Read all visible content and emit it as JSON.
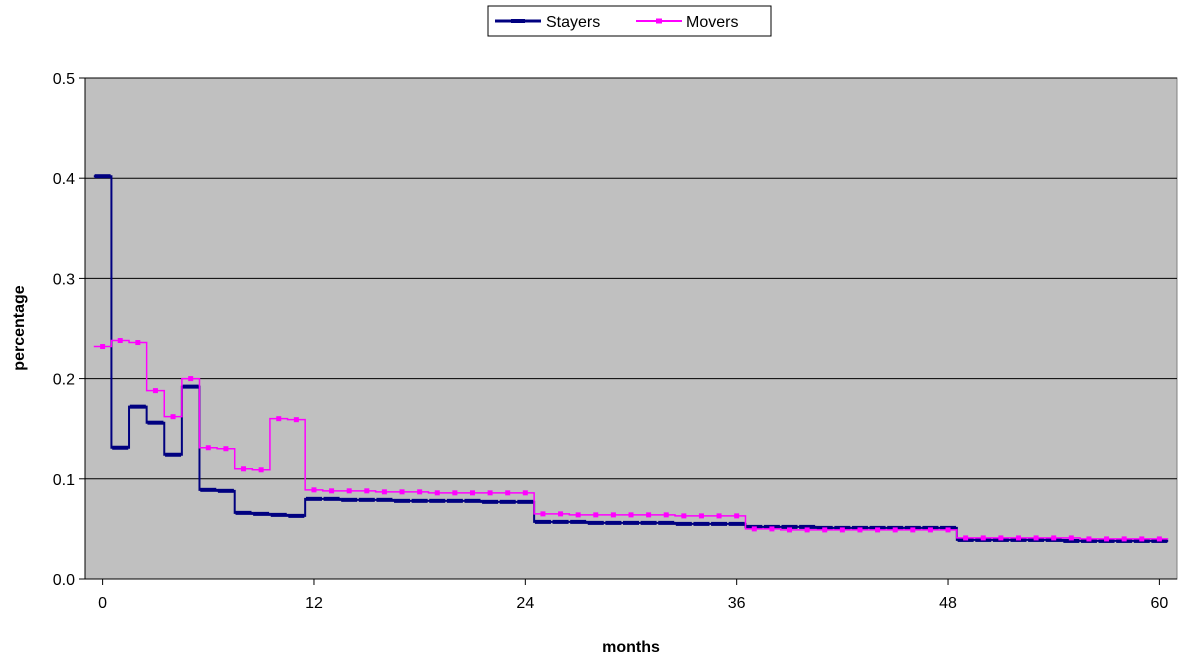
{
  "chart_data": {
    "type": "line",
    "step": true,
    "title": "",
    "xlabel": "months",
    "ylabel": "percentage",
    "xlim": [
      -1,
      61
    ],
    "ylim": [
      0,
      0.5
    ],
    "x_ticks": [
      0,
      12,
      24,
      36,
      48,
      60
    ],
    "y_ticks": [
      0.0,
      0.1,
      0.2,
      0.3,
      0.4,
      0.5
    ],
    "x_tick_labels": [
      "0",
      "12",
      "24",
      "36",
      "48",
      "60"
    ],
    "y_tick_labels": [
      "0.0",
      "0.1",
      "0.2",
      "0.3",
      "0.4",
      "0.5"
    ],
    "grid": "horizontal",
    "legend_position": "top-center",
    "plot_background": "#c0c0c0",
    "series": [
      {
        "name": "Stayers",
        "color": "#000080",
        "marker": "dash",
        "x": [
          0,
          1,
          2,
          3,
          4,
          5,
          6,
          7,
          8,
          9,
          10,
          11,
          12,
          13,
          14,
          15,
          16,
          17,
          18,
          19,
          20,
          21,
          22,
          23,
          24,
          25,
          26,
          27,
          28,
          29,
          30,
          31,
          32,
          33,
          34,
          35,
          36,
          37,
          38,
          39,
          40,
          41,
          42,
          43,
          44,
          45,
          46,
          47,
          48,
          49,
          50,
          51,
          52,
          53,
          54,
          55,
          56,
          57,
          58,
          59,
          60
        ],
        "y": [
          0.402,
          0.131,
          0.172,
          0.156,
          0.124,
          0.192,
          0.089,
          0.088,
          0.066,
          0.065,
          0.064,
          0.063,
          0.08,
          0.08,
          0.079,
          0.079,
          0.079,
          0.078,
          0.078,
          0.078,
          0.078,
          0.078,
          0.077,
          0.077,
          0.077,
          0.057,
          0.057,
          0.057,
          0.056,
          0.056,
          0.056,
          0.056,
          0.056,
          0.055,
          0.055,
          0.055,
          0.055,
          0.052,
          0.052,
          0.052,
          0.052,
          0.051,
          0.051,
          0.051,
          0.051,
          0.051,
          0.051,
          0.051,
          0.051,
          0.039,
          0.039,
          0.039,
          0.039,
          0.039,
          0.039,
          0.038,
          0.038,
          0.038,
          0.038,
          0.038,
          0.038
        ]
      },
      {
        "name": "Movers",
        "color": "#ff00ff",
        "marker": "square",
        "x": [
          0,
          1,
          2,
          3,
          4,
          5,
          6,
          7,
          8,
          9,
          10,
          11,
          12,
          13,
          14,
          15,
          16,
          17,
          18,
          19,
          20,
          21,
          22,
          23,
          24,
          25,
          26,
          27,
          28,
          29,
          30,
          31,
          32,
          33,
          34,
          35,
          36,
          37,
          38,
          39,
          40,
          41,
          42,
          43,
          44,
          45,
          46,
          47,
          48,
          49,
          50,
          51,
          52,
          53,
          54,
          55,
          56,
          57,
          58,
          59,
          60
        ],
        "y": [
          0.232,
          0.238,
          0.236,
          0.188,
          0.162,
          0.2,
          0.131,
          0.13,
          0.11,
          0.109,
          0.16,
          0.159,
          0.089,
          0.088,
          0.088,
          0.088,
          0.087,
          0.087,
          0.087,
          0.086,
          0.086,
          0.086,
          0.086,
          0.086,
          0.086,
          0.065,
          0.065,
          0.064,
          0.064,
          0.064,
          0.064,
          0.064,
          0.064,
          0.063,
          0.063,
          0.063,
          0.063,
          0.05,
          0.05,
          0.049,
          0.049,
          0.049,
          0.049,
          0.049,
          0.049,
          0.049,
          0.049,
          0.049,
          0.049,
          0.041,
          0.041,
          0.041,
          0.041,
          0.041,
          0.041,
          0.041,
          0.04,
          0.04,
          0.04,
          0.04,
          0.04
        ]
      }
    ]
  }
}
